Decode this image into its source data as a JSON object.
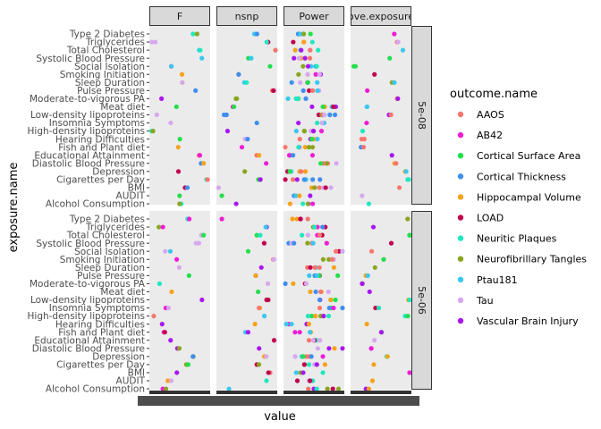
{
  "chart_data": {
    "type": "scatter",
    "xlabel": "value",
    "ylabel": "exposure.name",
    "facet_columns": [
      "F",
      "nsnp",
      "Power",
      "ove.exposure"
    ],
    "facet_rows": [
      "5e-08",
      "5e-06"
    ],
    "exposures": [
      "Type 2 Diabetes",
      "Triglycerides",
      "Total Cholesterol",
      "Systolic Blood Pressure",
      "Social Isolation",
      "Smoking Initiation",
      "Sleep Duration",
      "Pulse Pressure",
      "Moderate-to-vigorous PA",
      "Meat diet",
      "Low-density lipoproteins",
      "Insomnia Symptoms",
      "High-density lipoproteins",
      "Hearing Difficulties",
      "Fish and Plant diet",
      "Educational Attainment",
      "Diastolic Blood Pressure",
      "Depression",
      "Cigarettes per Day",
      "BMI",
      "AUDIT",
      "Alcohol Consumption"
    ],
    "legend": {
      "title": "outcome.name",
      "placement": "right",
      "items": [
        {
          "name": "AAOS",
          "color": "#F8766D"
        },
        {
          "name": "AB42",
          "color": "#EF1CD6"
        },
        {
          "name": "Cortical Surface Area",
          "color": "#22E04A"
        },
        {
          "name": "Cortical Thickness",
          "color": "#3F8EF0"
        },
        {
          "name": "Hippocampal Volume",
          "color": "#F7A21B"
        },
        {
          "name": "LOAD",
          "color": "#C2004E"
        },
        {
          "name": "Neuritic Plaques",
          "color": "#1EE8C0"
        },
        {
          "name": "Neurofibrillary Tangles",
          "color": "#8AA61E"
        },
        {
          "name": "Ptau181",
          "color": "#38C8F0"
        },
        {
          "name": "Tau",
          "color": "#D6A8EE"
        },
        {
          "name": "Vascular Brain Injury",
          "color": "#A916EF"
        }
      ]
    },
    "panel_ranges": [
      [
        0.05,
        0.45
      ],
      [
        0.55,
        0.75
      ],
      [
        0.1,
        0.4
      ],
      [
        0.12,
        0.75
      ]
    ],
    "panel_x": [
      [
        [
          0.73,
          0.06,
          0.83,
          0.88,
          0.34,
          0.55,
          0.52,
          0.78,
          0.2,
          0.43,
          0.1,
          0.35,
          0.06,
          0.49,
          0.48,
          0.82,
          0.88,
          0.46,
          0.92,
          0.59,
          0.47,
          0.5
        ],
        [
          0.61,
          0.18,
          0.86,
          0.78,
          0.29,
          0.47,
          0.5,
          0.64,
          0.16,
          0.37,
          0.88,
          0.28,
          0.06,
          0.21,
          0.22,
          0.32,
          0.49,
          0.7,
          0.6,
          0.44,
          0.31,
          0.22
        ]
      ],
      [
        [
          0.63,
          0.82,
          0.96,
          0.55,
          0.86,
          0.37,
          0.44,
          0.93,
          0.31,
          0.26,
          0.13,
          0.68,
          0.18,
          0.47,
          0.42,
          0.67,
          0.84,
          0.45,
          0.7,
          0.06,
          0.06,
          0.32
        ],
        [
          0.09,
          0.8,
          0.69,
          0.81,
          0.53,
          0.91,
          0.73,
          0.63,
          0.85,
          0.66,
          0.81,
          0.69,
          0.81,
          0.62,
          0.49,
          0.94,
          0.73,
          0.77,
          0.65,
          0.86,
          0.85,
          0.23
        ]
      ],
      [
        [
          0.05,
          0.13,
          0.14,
          0.1,
          0.17,
          0.31,
          0.11,
          0.32,
          0.05,
          0.47,
          0.41,
          0.28,
          0.18,
          0.18,
          0.07,
          0.08,
          0.47,
          0.06,
          0.05,
          0.36,
          0.05,
          0.04
        ],
        [
          0.05,
          0.38,
          0.26,
          0.13,
          0.72,
          0.52,
          0.42,
          0.36,
          0.05,
          0.35,
          0.47,
          0.55,
          0.25,
          0.05,
          0.22,
          0.37,
          0.62,
          0.05,
          0.19,
          0.21,
          0.21,
          0.44
        ]
      ],
      [
        [
          0.72,
          0.78,
          0.89,
          0.62,
          0.06,
          0.38,
          0.67,
          0.26,
          0.78,
          0.25,
          0.66,
          0.27,
          0.2,
          0.18,
          0.2,
          0.69,
          0.7,
          0.9,
          0.95,
          0.8,
          0.2,
          0.32
        ],
        [
          0.93,
          0.38,
          0.98,
          0.65,
          0.34,
          0.52,
          0.38,
          0.25,
          0.19,
          0.33,
          0.97,
          0.42,
          0.9,
          0.29,
          0.51,
          0.42,
          0.32,
          0.57,
          0.36,
          0.97,
          0.34,
          0.28
        ]
      ]
    ]
  }
}
